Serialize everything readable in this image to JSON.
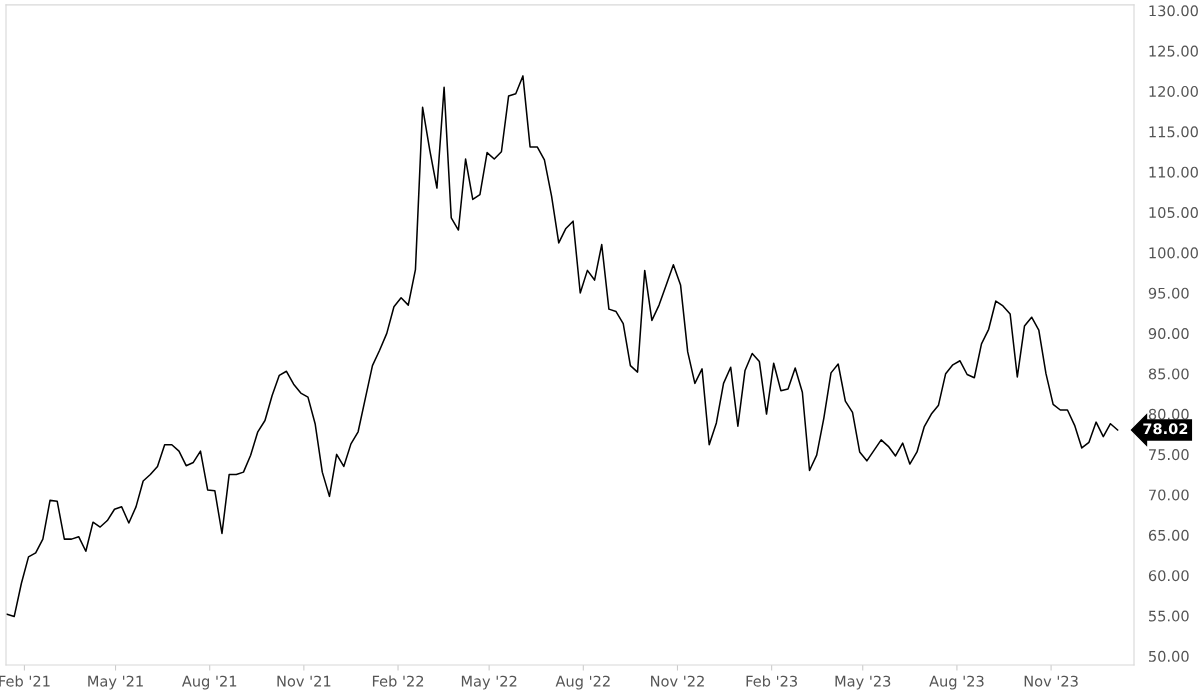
{
  "chart_data": {
    "type": "line",
    "x": [
      "2021-01-15",
      "2021-01-22",
      "2021-01-29",
      "2021-02-05",
      "2021-02-12",
      "2021-02-19",
      "2021-02-26",
      "2021-03-05",
      "2021-03-12",
      "2021-03-19",
      "2021-03-26",
      "2021-04-02",
      "2021-04-09",
      "2021-04-16",
      "2021-04-23",
      "2021-04-30",
      "2021-05-07",
      "2021-05-14",
      "2021-05-21",
      "2021-05-28",
      "2021-06-04",
      "2021-06-11",
      "2021-06-18",
      "2021-06-25",
      "2021-07-02",
      "2021-07-09",
      "2021-07-16",
      "2021-07-23",
      "2021-07-30",
      "2021-08-06",
      "2021-08-13",
      "2021-08-20",
      "2021-08-27",
      "2021-09-03",
      "2021-09-10",
      "2021-09-17",
      "2021-09-24",
      "2021-10-01",
      "2021-10-08",
      "2021-10-15",
      "2021-10-22",
      "2021-10-29",
      "2021-11-05",
      "2021-11-12",
      "2021-11-19",
      "2021-11-26",
      "2021-12-03",
      "2021-12-10",
      "2021-12-17",
      "2021-12-24",
      "2021-12-31",
      "2022-01-07",
      "2022-01-14",
      "2022-01-21",
      "2022-01-28",
      "2022-02-04",
      "2022-02-11",
      "2022-02-18",
      "2022-02-25",
      "2022-03-04",
      "2022-03-11",
      "2022-03-18",
      "2022-03-25",
      "2022-04-01",
      "2022-04-08",
      "2022-04-15",
      "2022-04-22",
      "2022-04-29",
      "2022-05-06",
      "2022-05-13",
      "2022-05-20",
      "2022-05-27",
      "2022-06-03",
      "2022-06-10",
      "2022-06-17",
      "2022-06-24",
      "2022-07-01",
      "2022-07-08",
      "2022-07-15",
      "2022-07-22",
      "2022-07-29",
      "2022-08-05",
      "2022-08-12",
      "2022-08-19",
      "2022-08-26",
      "2022-09-02",
      "2022-09-09",
      "2022-09-16",
      "2022-09-23",
      "2022-09-30",
      "2022-10-07",
      "2022-10-14",
      "2022-10-21",
      "2022-10-28",
      "2022-11-04",
      "2022-11-11",
      "2022-11-18",
      "2022-11-25",
      "2022-12-02",
      "2022-12-09",
      "2022-12-16",
      "2022-12-23",
      "2022-12-30",
      "2023-01-06",
      "2023-01-13",
      "2023-01-20",
      "2023-01-27",
      "2023-02-03",
      "2023-02-10",
      "2023-02-17",
      "2023-02-24",
      "2023-03-03",
      "2023-03-10",
      "2023-03-17",
      "2023-03-24",
      "2023-03-31",
      "2023-04-07",
      "2023-04-14",
      "2023-04-21",
      "2023-04-28",
      "2023-05-05",
      "2023-05-12",
      "2023-05-19",
      "2023-05-26",
      "2023-06-02",
      "2023-06-09",
      "2023-06-16",
      "2023-06-23",
      "2023-06-30",
      "2023-07-07",
      "2023-07-14",
      "2023-07-21",
      "2023-07-28",
      "2023-08-04",
      "2023-08-11",
      "2023-08-18",
      "2023-08-25",
      "2023-09-01",
      "2023-09-08",
      "2023-09-15",
      "2023-09-22",
      "2023-09-29",
      "2023-10-06",
      "2023-10-13",
      "2023-10-20",
      "2023-10-27",
      "2023-11-03",
      "2023-11-10",
      "2023-11-17",
      "2023-11-24",
      "2023-12-01",
      "2023-12-08",
      "2023-12-15",
      "2023-12-22",
      "2023-12-29",
      "2024-01-05"
    ],
    "values": [
      55.2,
      54.9,
      59,
      62.3,
      62.8,
      64.5,
      69.3,
      69.2,
      64.5,
      64.5,
      64.8,
      63,
      66.6,
      66,
      66.8,
      68.2,
      68.5,
      66.5,
      68.5,
      71.7,
      72.5,
      73.5,
      76.2,
      76.2,
      75.4,
      73.6,
      74,
      75.4,
      70.6,
      70.5,
      65.2,
      72.5,
      72.5,
      72.8,
      74.9,
      77.8,
      79.2,
      82.3,
      84.8,
      85.3,
      83.7,
      82.6,
      82.1,
      78.8,
      72.8,
      69.8,
      75,
      73.5,
      76.3,
      77.8,
      81.9,
      86,
      87.9,
      90,
      93.3,
      94.4,
      93.5,
      97.9,
      118,
      112.7,
      108,
      120.5,
      104.3,
      102.8,
      111.6,
      106.6,
      107.2,
      112.4,
      111.6,
      112.5,
      119.4,
      119.7,
      121.9,
      113.1,
      113.1,
      111.5,
      107,
      101.2,
      103,
      103.9,
      95,
      97.8,
      96.6,
      101,
      93,
      92.7,
      91.2,
      86,
      85.2,
      97.8,
      91.6,
      93.5,
      96,
      98.5,
      96,
      87.7,
      83.8,
      85.6,
      76.2,
      78.9,
      83.8,
      85.8,
      78.5,
      85.4,
      87.5,
      86.5,
      80,
      86.3,
      82.9,
      83.1,
      85.7,
      82.7,
      73,
      74.9,
      79.5,
      85.1,
      86.2,
      81.6,
      80.2,
      75.3,
      74.2,
      75.5,
      76.8,
      76,
      74.8,
      76.4,
      73.8,
      75.3,
      78.4,
      80,
      81.1,
      85,
      86.1,
      86.6,
      84.9,
      84.5,
      88.7,
      90.5,
      94,
      93.4,
      92.4,
      84.6,
      90.9,
      92,
      90.4,
      85,
      81.2,
      80.5,
      80.5,
      78.6,
      75.8,
      76.5,
      79,
      77.2,
      78.8,
      78.02
    ],
    "value_labels": [
      null,
      null,
      null,
      null,
      null,
      null,
      null,
      null,
      null,
      null,
      null,
      null,
      null,
      null,
      null,
      null,
      null,
      null,
      null,
      null,
      null,
      null,
      null,
      null,
      null,
      null,
      null,
      null,
      null,
      null,
      null,
      null,
      null,
      null,
      null,
      null,
      null,
      null,
      null,
      null,
      null,
      null,
      null,
      null,
      null,
      null,
      null,
      null,
      null,
      null,
      null,
      null,
      null,
      null,
      null,
      null,
      null,
      null,
      null,
      null,
      null,
      null,
      null,
      null,
      null,
      null,
      null,
      null,
      null,
      null,
      null,
      null,
      null,
      null,
      null,
      null,
      null,
      null,
      null,
      null,
      null,
      null,
      null,
      null,
      null,
      null,
      null,
      null,
      null,
      null,
      null,
      null,
      null,
      null,
      null,
      null,
      null,
      null,
      null,
      null,
      null,
      null,
      null,
      null,
      null,
      null,
      null,
      null,
      null,
      null,
      null,
      null,
      null,
      null,
      null,
      null,
      null,
      null,
      null,
      null,
      null,
      null,
      null,
      null,
      null,
      null,
      null,
      null,
      null,
      null,
      null,
      null,
      null,
      null,
      null,
      null,
      null,
      null,
      null,
      null,
      null,
      null,
      null,
      null,
      null,
      null,
      null,
      null,
      null,
      null,
      null,
      null,
      null,
      null,
      null,
      "78.02"
    ],
    "color": "#000000",
    "xlim": [
      "2021-01-14",
      "2024-01-21"
    ],
    "xticks": [
      {
        "value": "2021-02-01",
        "label": "Feb '21"
      },
      {
        "value": "2021-05-01",
        "label": "May '21"
      },
      {
        "value": "2021-08-01",
        "label": "Aug '21"
      },
      {
        "value": "2021-11-01",
        "label": "Nov '21"
      },
      {
        "value": "2022-02-01",
        "label": "Feb '22"
      },
      {
        "value": "2022-05-01",
        "label": "May '22"
      },
      {
        "value": "2022-08-01",
        "label": "Aug '22"
      },
      {
        "value": "2022-11-01",
        "label": "Nov '22"
      },
      {
        "value": "2023-02-01",
        "label": "Feb '23"
      },
      {
        "value": "2023-05-01",
        "label": "May '23"
      },
      {
        "value": "2023-08-01",
        "label": "Aug '23"
      },
      {
        "value": "2023-11-01",
        "label": "Nov '23"
      }
    ],
    "ylim": [
      48.9,
      130.7
    ],
    "yticks": [
      {
        "value": 50,
        "label": "50.00"
      },
      {
        "value": 55,
        "label": "55.00"
      },
      {
        "value": 60,
        "label": "60.00"
      },
      {
        "value": 65,
        "label": "65.00"
      },
      {
        "value": 70,
        "label": "70.00"
      },
      {
        "value": 75,
        "label": "75.00"
      },
      {
        "value": 80,
        "label": "80.00"
      },
      {
        "value": 85,
        "label": "85.00"
      },
      {
        "value": 90,
        "label": "90.00"
      },
      {
        "value": 95,
        "label": "95.00"
      },
      {
        "value": 100,
        "label": "100.00"
      },
      {
        "value": 105,
        "label": "105.00"
      },
      {
        "value": 110,
        "label": "110.00"
      },
      {
        "value": 115,
        "label": "115.00"
      },
      {
        "value": 120,
        "label": "120.00"
      },
      {
        "value": 125,
        "label": "125.00"
      },
      {
        "value": 130,
        "label": "130.00"
      }
    ],
    "grid": false,
    "marker": "none",
    "line_style": "solid"
  }
}
